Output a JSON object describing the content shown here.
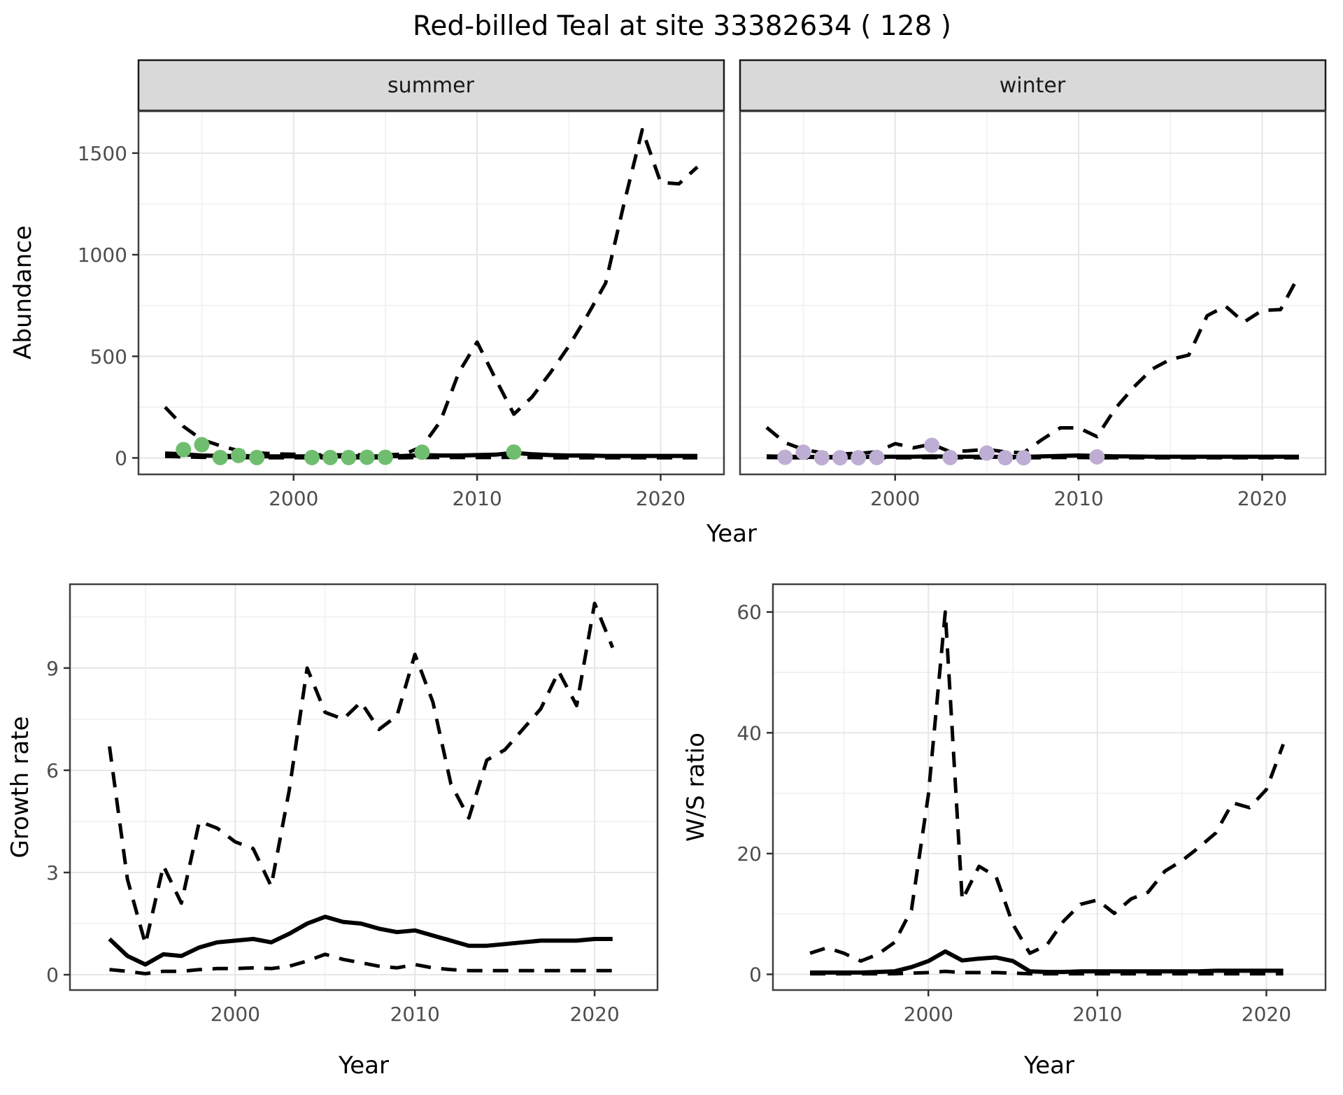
{
  "title": "Red-billed Teal at site 33382634 ( 128 )",
  "facets": {
    "summer_label": "summer",
    "winter_label": "winter"
  },
  "axes": {
    "abundance_title": "Abundance",
    "year_title_top": "Year",
    "growth_title": "Growth rate",
    "ws_title": "W/S ratio",
    "year_title_bottom_left": "Year",
    "year_title_bottom_right": "Year"
  },
  "colors": {
    "summer_point": "#6FBE6F",
    "winter_point": "#BEAED4",
    "line": "#000000",
    "strip_bg": "#d9d9d9",
    "grid_major": "#e6e6e6",
    "grid_minor": "#f1f1f1",
    "tick_text": "#4d4d4d"
  },
  "chart_data": [
    {
      "id": "summer_abundance",
      "type": "line",
      "facet": "summer",
      "ylabel": "Abundance",
      "xlabel": "Year",
      "xlim": [
        1991.55,
        2023.45
      ],
      "ylim": [
        -81,
        1706
      ],
      "x_ticks": [
        2000,
        2010,
        2020
      ],
      "x_minor": [
        1995,
        2005,
        2015
      ],
      "y_ticks": [
        0,
        500,
        1000,
        1500
      ],
      "y_minor": [
        250,
        750,
        1250
      ],
      "show_y_labels": true,
      "x": [
        1993,
        1994,
        1995,
        1996,
        1997,
        1998,
        1999,
        2000,
        2001,
        2002,
        2003,
        2004,
        2005,
        2006,
        2007,
        2008,
        2009,
        2010,
        2011,
        2012,
        2013,
        2014,
        2015,
        2016,
        2017,
        2018,
        2019,
        2020,
        2021,
        2022
      ],
      "series": [
        {
          "name": "lower-ci",
          "style": "dashed",
          "values": [
            8,
            5,
            3,
            2,
            2,
            1,
            1,
            1,
            1,
            1,
            1,
            1,
            1,
            1,
            2,
            2,
            2,
            2,
            2,
            3,
            2,
            1,
            1,
            1,
            1,
            1,
            1,
            1,
            1,
            1
          ]
        },
        {
          "name": "upper-ci",
          "style": "dashed",
          "values": [
            250,
            155,
            90,
            60,
            35,
            25,
            20,
            18,
            15,
            15,
            15,
            15,
            15,
            18,
            55,
            180,
            420,
            570,
            390,
            215,
            300,
            420,
            550,
            700,
            860,
            1250,
            1615,
            1356,
            1349,
            1432
          ]
        },
        {
          "name": "median",
          "style": "solid",
          "values": [
            22,
            18,
            12,
            10,
            10,
            8,
            8,
            8,
            8,
            8,
            8,
            8,
            8,
            10,
            14,
            12,
            12,
            14,
            16,
            25,
            18,
            14,
            12,
            12,
            10,
            10,
            10,
            10,
            10,
            10
          ]
        }
      ],
      "points": [
        [
          1994,
          41
        ],
        [
          1995,
          65
        ],
        [
          1996,
          2
        ],
        [
          1997,
          12
        ],
        [
          1998,
          2
        ],
        [
          2001,
          2
        ],
        [
          2002,
          2
        ],
        [
          2003,
          2
        ],
        [
          2004,
          3
        ],
        [
          2005,
          3
        ],
        [
          2007,
          28
        ],
        [
          2012,
          29
        ]
      ],
      "point_color": "#6FBE6F"
    },
    {
      "id": "winter_abundance",
      "type": "line",
      "facet": "winter",
      "ylabel": "Abundance",
      "xlabel": "Year",
      "xlim": [
        1991.55,
        2023.45
      ],
      "ylim": [
        -81,
        1706
      ],
      "x_ticks": [
        2000,
        2010,
        2020
      ],
      "x_minor": [
        1995,
        2005,
        2015
      ],
      "y_ticks": [
        0,
        500,
        1000,
        1500
      ],
      "y_minor": [
        250,
        750,
        1250
      ],
      "show_y_labels": false,
      "x": [
        1993,
        1994,
        1995,
        1996,
        1997,
        1998,
        1999,
        2000,
        2001,
        2002,
        2003,
        2004,
        2005,
        2006,
        2007,
        2008,
        2009,
        2010,
        2011,
        2012,
        2013,
        2014,
        2015,
        2016,
        2017,
        2018,
        2019,
        2020,
        2021,
        2022
      ],
      "series": [
        {
          "name": "lower-ci",
          "style": "dashed",
          "values": [
            2,
            1,
            1,
            1,
            1,
            1,
            1,
            1,
            1,
            2,
            1,
            1,
            1,
            1,
            1,
            1,
            2,
            2,
            1,
            1,
            1,
            1,
            1,
            1,
            1,
            1,
            1,
            1,
            1,
            1
          ]
        },
        {
          "name": "upper-ci",
          "style": "dashed",
          "values": [
            150,
            75,
            42,
            25,
            20,
            22,
            30,
            70,
            50,
            68,
            30,
            35,
            42,
            30,
            25,
            90,
            148,
            148,
            105,
            244,
            348,
            437,
            485,
            506,
            700,
            747,
            668,
            726,
            730,
            898
          ]
        },
        {
          "name": "median",
          "style": "solid",
          "values": [
            8,
            6,
            5,
            4,
            4,
            4,
            5,
            6,
            6,
            8,
            6,
            6,
            6,
            5,
            5,
            8,
            10,
            12,
            10,
            8,
            7,
            6,
            6,
            6,
            6,
            6,
            6,
            6,
            6,
            6
          ]
        }
      ],
      "points": [
        [
          1994,
          3
        ],
        [
          1995,
          28
        ],
        [
          1996,
          1
        ],
        [
          1997,
          1
        ],
        [
          1998,
          1
        ],
        [
          1999,
          2
        ],
        [
          2002,
          62
        ],
        [
          2003,
          2
        ],
        [
          2005,
          24
        ],
        [
          2006,
          1
        ],
        [
          2007,
          1
        ],
        [
          2011,
          5
        ]
      ],
      "point_color": "#BEAED4"
    },
    {
      "id": "growth_rate",
      "type": "line",
      "ylabel": "Growth rate",
      "xlabel": "Year",
      "xlim": [
        1990.8,
        2023.5
      ],
      "ylim": [
        -0.45,
        11.46
      ],
      "x_ticks": [
        2000,
        2010,
        2020
      ],
      "x_minor": [
        1995,
        2005,
        2015
      ],
      "y_ticks": [
        0,
        3,
        6,
        9
      ],
      "y_minor": [
        1.5,
        4.5,
        7.5,
        10.5
      ],
      "show_y_labels": true,
      "x": [
        1993,
        1994,
        1995,
        1996,
        1997,
        1998,
        1999,
        2000,
        2001,
        2002,
        2003,
        2004,
        2005,
        2006,
        2007,
        2008,
        2009,
        2010,
        2011,
        2012,
        2013,
        2014,
        2015,
        2016,
        2017,
        2018,
        2019,
        2020,
        2021
      ],
      "series": [
        {
          "name": "lower-ci",
          "style": "dashed",
          "values": [
            0.15,
            0.1,
            0.03,
            0.1,
            0.1,
            0.15,
            0.18,
            0.18,
            0.2,
            0.18,
            0.25,
            0.4,
            0.6,
            0.45,
            0.35,
            0.25,
            0.2,
            0.3,
            0.2,
            0.15,
            0.12,
            0.12,
            0.12,
            0.12,
            0.12,
            0.12,
            0.12,
            0.12,
            0.12
          ]
        },
        {
          "name": "upper-ci",
          "style": "dashed",
          "values": [
            6.7,
            2.8,
            0.9,
            3.2,
            2.1,
            4.5,
            4.3,
            3.9,
            3.7,
            2.6,
            5.4,
            9.0,
            7.7,
            7.5,
            8.0,
            7.2,
            7.6,
            9.4,
            8.0,
            5.6,
            4.6,
            6.3,
            6.6,
            7.2,
            7.8,
            8.9,
            7.9,
            10.9,
            9.6
          ]
        },
        {
          "name": "median",
          "style": "solid",
          "values": [
            1.05,
            0.55,
            0.3,
            0.6,
            0.55,
            0.8,
            0.95,
            1.0,
            1.05,
            0.95,
            1.2,
            1.5,
            1.7,
            1.55,
            1.5,
            1.35,
            1.25,
            1.3,
            1.15,
            1.0,
            0.85,
            0.85,
            0.9,
            0.95,
            1.0,
            1.0,
            1.0,
            1.05,
            1.05
          ]
        }
      ],
      "points": [],
      "point_color": "#000000"
    },
    {
      "id": "ws_ratio",
      "type": "line",
      "ylabel": "W/S ratio",
      "xlabel": "Year",
      "xlim": [
        1990.8,
        2023.5
      ],
      "ylim": [
        -2.6,
        64.6
      ],
      "x_ticks": [
        2000,
        2010,
        2020
      ],
      "x_minor": [
        1995,
        2005,
        2015
      ],
      "y_ticks": [
        0,
        20,
        40,
        60
      ],
      "y_minor": [
        10,
        30,
        50
      ],
      "show_y_labels": true,
      "x": [
        1993,
        1994,
        1995,
        1996,
        1997,
        1998,
        1999,
        2000,
        2001,
        2002,
        2003,
        2004,
        2005,
        2006,
        2007,
        2008,
        2009,
        2010,
        2011,
        2012,
        2013,
        2014,
        2015,
        2016,
        2017,
        2018,
        2019,
        2020,
        2021
      ],
      "series": [
        {
          "name": "lower-ci",
          "style": "dashed",
          "values": [
            0.1,
            0.1,
            0.1,
            0.1,
            0.1,
            0.1,
            0.2,
            0.3,
            0.5,
            0.3,
            0.3,
            0.3,
            0.2,
            0.1,
            0.1,
            0.1,
            0.1,
            0.1,
            0.1,
            0.1,
            0.1,
            0.1,
            0.1,
            0.1,
            0.1,
            0.1,
            0.1,
            0.1,
            0.1
          ]
        },
        {
          "name": "upper-ci",
          "style": "dashed",
          "values": [
            3.5,
            4.4,
            3.5,
            2.2,
            3.3,
            5.3,
            10.7,
            29.8,
            60,
            12.3,
            17.9,
            16.2,
            8.3,
            3.5,
            4.8,
            8.8,
            11.6,
            12.3,
            10.1,
            12.5,
            13.6,
            17.1,
            18.8,
            21.0,
            23.4,
            28.4,
            27.6,
            30.6,
            38.1
          ]
        },
        {
          "name": "median",
          "style": "solid",
          "values": [
            0.3,
            0.3,
            0.3,
            0.3,
            0.4,
            0.5,
            1.2,
            2.2,
            3.8,
            2.3,
            2.6,
            2.8,
            2.2,
            0.5,
            0.4,
            0.4,
            0.5,
            0.5,
            0.5,
            0.5,
            0.5,
            0.5,
            0.5,
            0.5,
            0.6,
            0.6,
            0.6,
            0.6,
            0.6
          ]
        }
      ],
      "points": [],
      "point_color": "#000000"
    }
  ]
}
